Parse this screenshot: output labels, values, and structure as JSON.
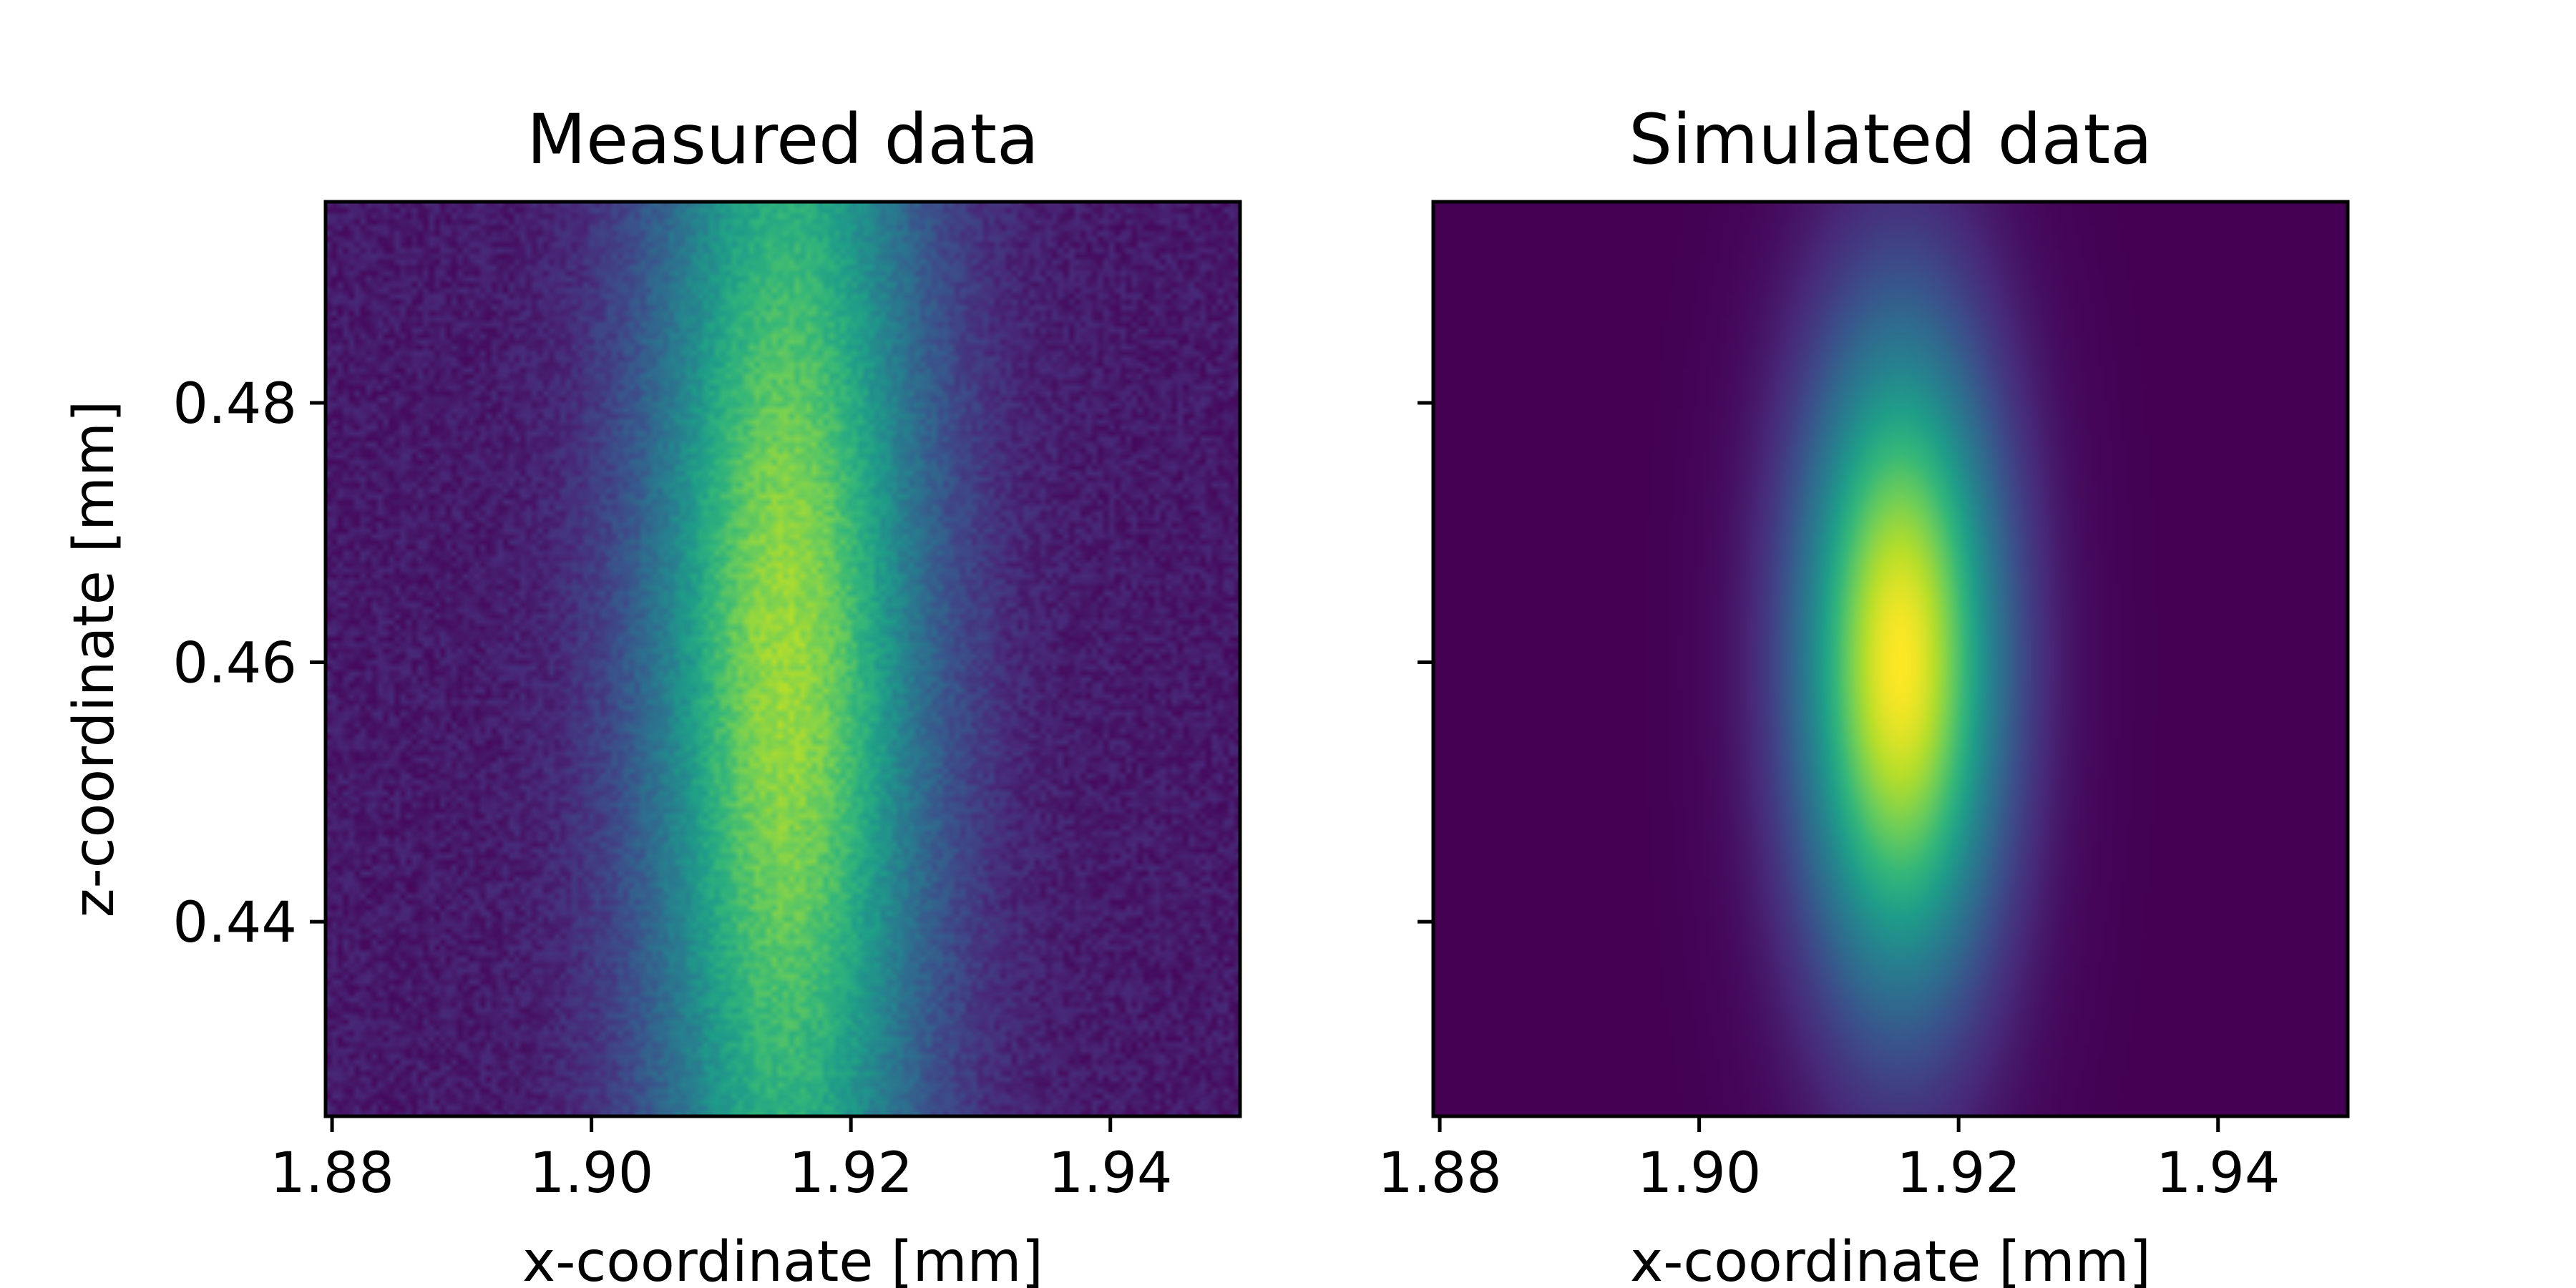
{
  "chart_data": [
    {
      "type": "heatmap",
      "title": "Measured data",
      "xlabel": "x-coordinate [mm]",
      "ylabel": "z-coordinate [mm]",
      "xlim": [
        1.8795,
        1.95
      ],
      "ylim": [
        0.425,
        0.4955
      ],
      "xticks": [
        1.88,
        1.9,
        1.92,
        1.94
      ],
      "xticklabels": [
        "1.88",
        "1.90",
        "1.92",
        "1.94"
      ],
      "yticks": [
        0.44,
        0.46,
        0.48
      ],
      "yticklabels": [
        "0.44",
        "0.46",
        "0.48"
      ],
      "colormap": "viridis",
      "noise": true,
      "beam": {
        "x_center": 1.915,
        "z_center": 0.46,
        "x_sigma": 0.0075,
        "z_sigma": 0.025
      },
      "grid": false
    },
    {
      "type": "heatmap",
      "title": "Simulated data",
      "xlabel": "x-coordinate [mm]",
      "ylabel": "",
      "xlim": [
        1.8795,
        1.95
      ],
      "ylim": [
        0.425,
        0.4955
      ],
      "xticks": [
        1.88,
        1.9,
        1.92,
        1.94
      ],
      "xticklabels": [
        "1.88",
        "1.90",
        "1.92",
        "1.94"
      ],
      "yticks": [
        0.44,
        0.46,
        0.48
      ],
      "yticklabels": [],
      "colormap": "viridis",
      "noise": false,
      "beam": {
        "x_center": 1.9155,
        "z_center": 0.46,
        "x_sigma": 0.0055,
        "z_sigma": 0.018
      },
      "grid": false
    }
  ],
  "colors": {
    "viridis": [
      "#440154",
      "#482878",
      "#3e4989",
      "#31688e",
      "#26828e",
      "#1f9e89",
      "#35b779",
      "#6ece58",
      "#b5de2b",
      "#fde725"
    ]
  }
}
